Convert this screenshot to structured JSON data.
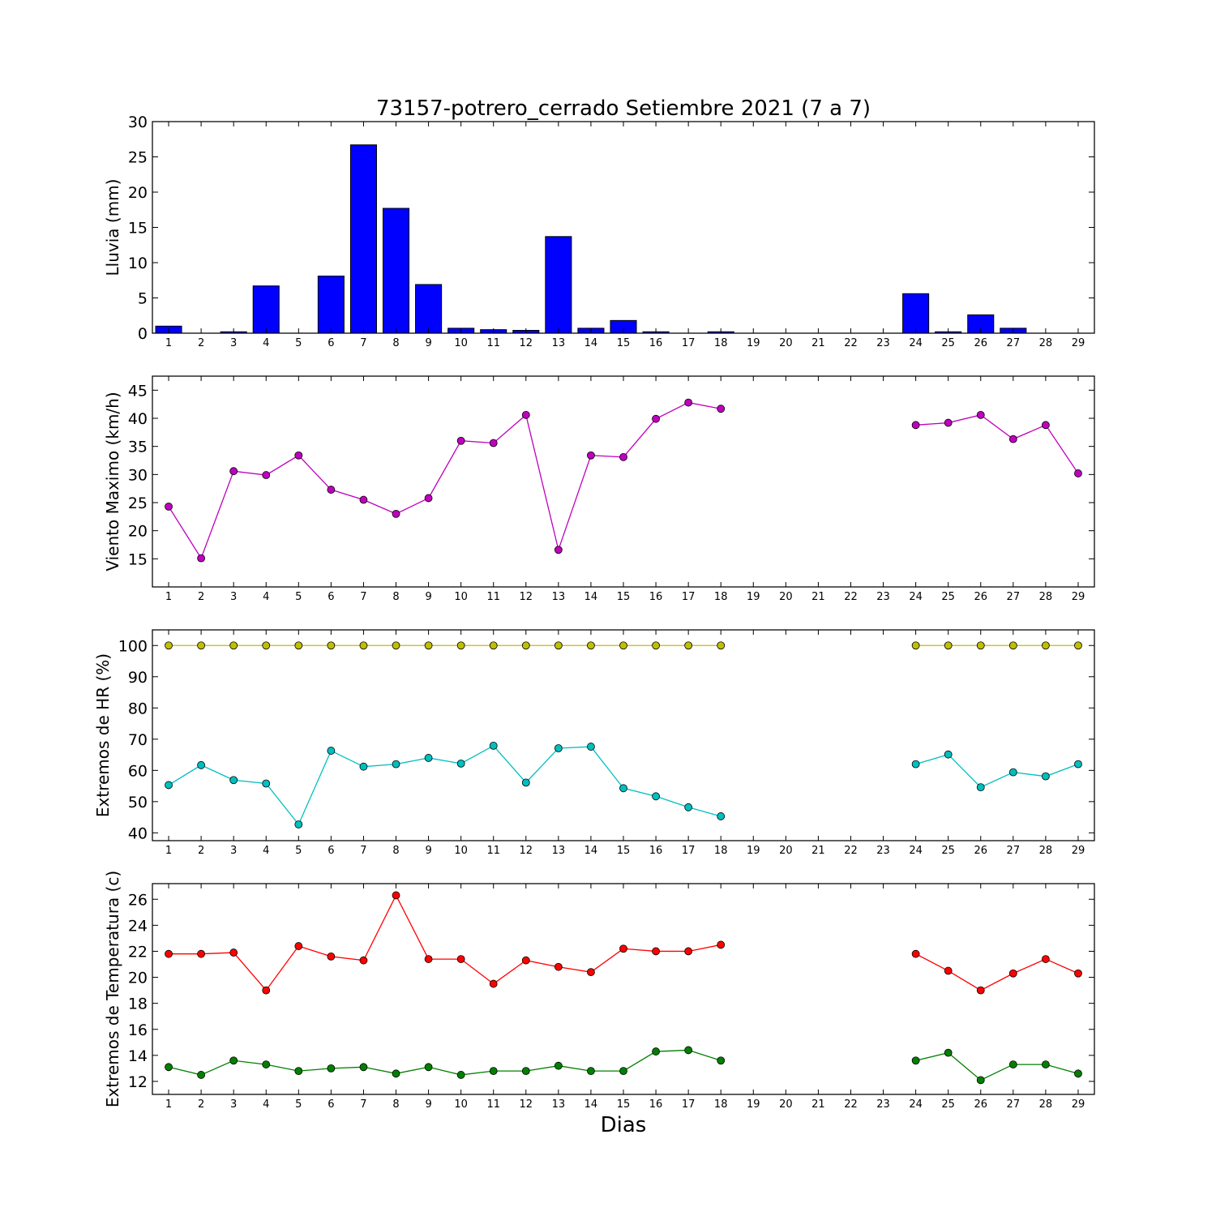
{
  "title": "73157-potrero_cerrado Setiembre 2021  (7 a 7)",
  "xlabel": "Dias",
  "colors": {
    "rain_bar": "#0000ff",
    "wind": "#bf00bf",
    "hr_max": "#bfbf00",
    "hr_min": "#00bfbf",
    "temp_max": "#ff0000",
    "temp_min": "#008000"
  },
  "chart_data": [
    {
      "type": "bar",
      "ylabel": "Lluvia (mm)",
      "xlim": [
        0.5,
        29.5
      ],
      "ylim": [
        0,
        30
      ],
      "yticks": [
        0,
        5,
        10,
        15,
        20,
        25,
        30
      ],
      "categories": [
        1,
        2,
        3,
        4,
        5,
        6,
        7,
        8,
        9,
        10,
        11,
        12,
        13,
        14,
        15,
        16,
        17,
        18,
        19,
        20,
        21,
        22,
        23,
        24,
        25,
        26,
        27,
        28,
        29
      ],
      "values": [
        1.0,
        0.0,
        0.2,
        6.7,
        0.0,
        8.1,
        26.7,
        17.7,
        6.9,
        0.7,
        0.5,
        0.4,
        13.7,
        0.7,
        1.8,
        0.2,
        0.0,
        0.2,
        0.0,
        0.0,
        0.0,
        0.0,
        0.0,
        5.6,
        0.2,
        2.6,
        0.7,
        0.0,
        0.0
      ],
      "series": [
        {
          "color_key": "rain_bar",
          "values": [
            1.0,
            0.0,
            0.2,
            6.7,
            0.0,
            8.1,
            26.7,
            17.7,
            6.9,
            0.7,
            0.5,
            0.4,
            13.7,
            0.7,
            1.8,
            0.2,
            0.0,
            0.2,
            0.0,
            0.0,
            0.0,
            0.0,
            0.0,
            5.6,
            0.2,
            2.6,
            0.7,
            0.0,
            0.0
          ]
        }
      ]
    },
    {
      "type": "line",
      "ylabel": "Viento Maximo (km/h)",
      "xlim": [
        0.5,
        29.5
      ],
      "ylim": [
        10,
        47.5
      ],
      "yticks": [
        15,
        20,
        25,
        30,
        35,
        40,
        45
      ],
      "x": [
        1,
        2,
        3,
        4,
        5,
        6,
        7,
        8,
        9,
        10,
        11,
        12,
        13,
        14,
        15,
        16,
        17,
        18,
        19,
        20,
        21,
        22,
        23,
        24,
        25,
        26,
        27,
        28,
        29
      ],
      "series": [
        {
          "color_key": "wind",
          "values": [
            24.3,
            15.1,
            30.6,
            29.9,
            33.4,
            27.3,
            25.5,
            23.0,
            25.8,
            36.0,
            35.6,
            40.6,
            16.6,
            33.4,
            33.1,
            39.9,
            42.8,
            41.7,
            null,
            null,
            null,
            null,
            null,
            38.8,
            39.2,
            40.6,
            36.3,
            38.8,
            30.2
          ]
        }
      ]
    },
    {
      "type": "line",
      "ylabel": "Extremos de HR (%)",
      "xlim": [
        0.5,
        29.5
      ],
      "ylim": [
        37.5,
        105
      ],
      "yticks": [
        40,
        50,
        60,
        70,
        80,
        90,
        100
      ],
      "x": [
        1,
        2,
        3,
        4,
        5,
        6,
        7,
        8,
        9,
        10,
        11,
        12,
        13,
        14,
        15,
        16,
        17,
        18,
        19,
        20,
        21,
        22,
        23,
        24,
        25,
        26,
        27,
        28,
        29
      ],
      "series": [
        {
          "color_key": "hr_max",
          "values": [
            100,
            100,
            100,
            100,
            100,
            100,
            100,
            100,
            100,
            100,
            100,
            100,
            100,
            100,
            100,
            100,
            100,
            100,
            null,
            null,
            null,
            null,
            null,
            100,
            100,
            100,
            100,
            100,
            100
          ]
        },
        {
          "color_key": "hr_min",
          "values": [
            55.3,
            61.7,
            56.9,
            55.8,
            42.7,
            66.3,
            61.2,
            62.0,
            64.0,
            62.2,
            67.9,
            56.1,
            67.1,
            67.6,
            54.3,
            51.7,
            48.2,
            45.3,
            null,
            null,
            null,
            null,
            null,
            62.0,
            65.1,
            54.6,
            59.4,
            58.1,
            62.0
          ]
        }
      ]
    },
    {
      "type": "line",
      "ylabel": "Extremos de Temperatura (c)",
      "xlim": [
        0.5,
        29.5
      ],
      "ylim": [
        11,
        27.2
      ],
      "yticks": [
        12,
        14,
        16,
        18,
        20,
        22,
        24,
        26
      ],
      "x": [
        1,
        2,
        3,
        4,
        5,
        6,
        7,
        8,
        9,
        10,
        11,
        12,
        13,
        14,
        15,
        16,
        17,
        18,
        19,
        20,
        21,
        22,
        23,
        24,
        25,
        26,
        27,
        28,
        29
      ],
      "series": [
        {
          "color_key": "temp_max",
          "values": [
            21.8,
            21.8,
            21.9,
            19.0,
            22.4,
            21.6,
            21.3,
            26.3,
            21.4,
            21.4,
            19.5,
            21.3,
            20.8,
            20.4,
            22.2,
            22.0,
            22.0,
            22.5,
            null,
            null,
            null,
            null,
            null,
            21.8,
            20.5,
            19.0,
            20.3,
            21.4,
            20.3
          ]
        },
        {
          "color_key": "temp_min",
          "values": [
            13.1,
            12.5,
            13.6,
            13.3,
            12.8,
            13.0,
            13.1,
            12.6,
            13.1,
            12.5,
            12.8,
            12.8,
            13.2,
            12.8,
            12.8,
            14.3,
            14.4,
            13.6,
            null,
            null,
            null,
            null,
            null,
            13.6,
            14.2,
            12.1,
            13.3,
            13.3,
            12.6
          ]
        }
      ]
    }
  ]
}
